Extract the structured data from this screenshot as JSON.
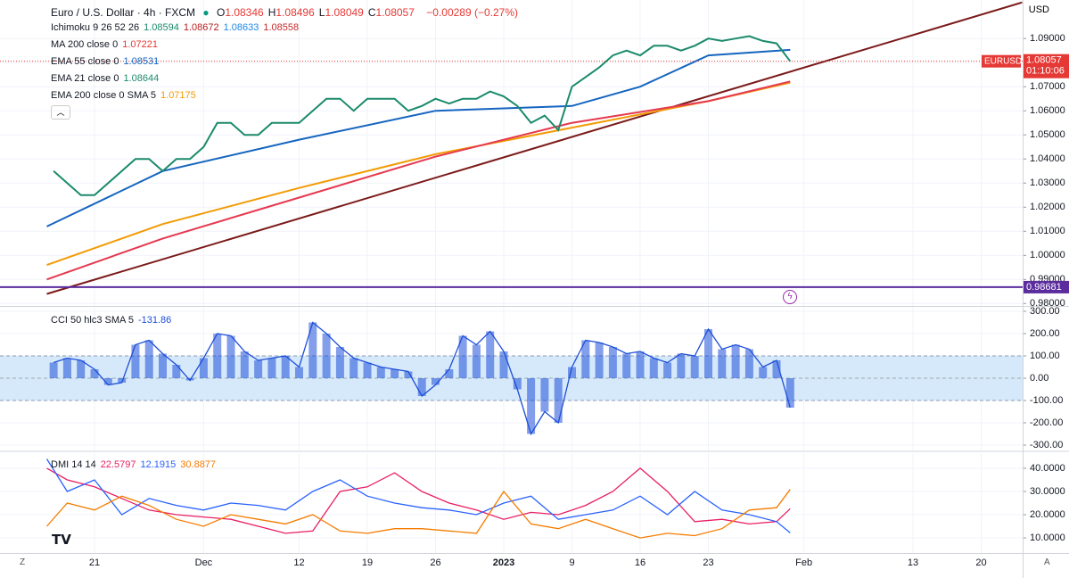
{
  "chart_data": [
    {
      "type": "line",
      "title": "Euro / U.S. Dollar · 4h · FXCM",
      "currency": "USD",
      "ohlc": [
        {
          "label": "O",
          "value": 1.08346
        },
        {
          "label": "H",
          "value": 1.08496
        },
        {
          "label": "L",
          "value": 1.08049
        },
        {
          "label": "C",
          "value": 1.08057
        }
      ],
      "change": "−0.00289 (−0.27%)",
      "indicators": [
        {
          "name": "Ichimoku 9 26 52 26",
          "values": [
            1.08594,
            1.08672,
            1.08633,
            1.08558
          ],
          "colors": [
            "#1b8a6b",
            "#b71c1c",
            "#1e88e5",
            "#c62828"
          ]
        },
        {
          "name": "MA 200 close 0",
          "values": [
            1.07221
          ],
          "colors": [
            "#e53935"
          ]
        },
        {
          "name": "EMA 55 close 0",
          "values": [
            1.08531
          ],
          "colors": [
            "#1565c0"
          ]
        },
        {
          "name": "EMA 21 close 0",
          "values": [
            1.08644
          ],
          "colors": [
            "#1b8a6b"
          ]
        },
        {
          "name": "EMA 200 close 0 SMA 5",
          "values": [
            1.07175
          ],
          "colors": [
            "#f29b05"
          ]
        }
      ],
      "xlim": [
        -6.93,
        68.04
      ],
      "ylim": [
        0.979,
        1.106
      ],
      "yticks": [
        {
          "value": 0.98,
          "label": "0.98000"
        },
        {
          "value": 0.99,
          "label": "0.99000"
        },
        {
          "value": 1.0,
          "label": "1.00000"
        },
        {
          "value": 1.01,
          "label": "1.01000"
        },
        {
          "value": 1.02,
          "label": "1.02000"
        },
        {
          "value": 1.03,
          "label": "1.03000"
        },
        {
          "value": 1.04,
          "label": "1.04000"
        },
        {
          "value": 1.05,
          "label": "1.05000"
        },
        {
          "value": 1.06,
          "label": "1.06000"
        },
        {
          "value": 1.07,
          "label": "1.07000"
        },
        {
          "value": 1.08,
          "label": "1.08000"
        },
        {
          "value": 1.09,
          "label": "1.09000"
        }
      ],
      "series": [
        {
          "color": "#7b1a1a",
          "x": [
            -3.5,
            68
          ],
          "values": [
            0.984,
            1.105
          ]
        },
        {
          "color": "#f29b05",
          "x": [
            -3.5,
            5,
            15,
            25,
            35,
            45,
            51
          ],
          "values": [
            0.996,
            1.013,
            1.028,
            1.042,
            1.053,
            1.064,
            1.0717
          ]
        },
        {
          "color": "#e53950",
          "x": [
            -3.5,
            5,
            15,
            25,
            35,
            45,
            51
          ],
          "values": [
            0.99,
            1.007,
            1.024,
            1.041,
            1.055,
            1.064,
            1.0722
          ]
        },
        {
          "color": "#1565c0",
          "x": [
            -3.5,
            5,
            15,
            25,
            35,
            40,
            45,
            51
          ],
          "values": [
            1.012,
            1.035,
            1.048,
            1.06,
            1.062,
            1.07,
            1.083,
            1.0853
          ]
        },
        {
          "color": "#1b8a6b",
          "x": [
            -3,
            -2,
            -1,
            0,
            1,
            2,
            3,
            4,
            5,
            6,
            7,
            8,
            9,
            10,
            11,
            12,
            13,
            14,
            15,
            16,
            17,
            18,
            19,
            20,
            21,
            22,
            23,
            24,
            25,
            26,
            27,
            28,
            29,
            30,
            31,
            32,
            33,
            34,
            35,
            36,
            37,
            38,
            39,
            40,
            41,
            42,
            43,
            44,
            45,
            46,
            47,
            48,
            49,
            50,
            51
          ],
          "values": [
            1.035,
            1.03,
            1.025,
            1.025,
            1.03,
            1.035,
            1.04,
            1.04,
            1.035,
            1.04,
            1.04,
            1.045,
            1.055,
            1.055,
            1.05,
            1.05,
            1.055,
            1.055,
            1.055,
            1.06,
            1.065,
            1.065,
            1.06,
            1.065,
            1.065,
            1.065,
            1.06,
            1.062,
            1.065,
            1.063,
            1.065,
            1.065,
            1.068,
            1.066,
            1.062,
            1.055,
            1.058,
            1.052,
            1.07,
            1.074,
            1.078,
            1.083,
            1.085,
            1.083,
            1.087,
            1.087,
            1.085,
            1.087,
            1.09,
            1.089,
            1.09,
            1.091,
            1.089,
            1.088,
            1.08057
          ]
        }
      ],
      "hline": {
        "value": 0.98681,
        "color": "#5b2c9e"
      },
      "last": {
        "value": 1.08057,
        "symbol": "EURUSD",
        "countdown": "01:10:06",
        "color": "#e53935"
      }
    },
    {
      "type": "line",
      "title": "CCI 50 hlc3 SMA 5",
      "last_value": -131.86,
      "xlim": [
        -6.93,
        68.04
      ],
      "ylim": [
        -324,
        324
      ],
      "yticks": [
        {
          "value": -300,
          "label": "-300.00"
        },
        {
          "value": -200,
          "label": "-200.00"
        },
        {
          "value": -100,
          "label": "-100.00"
        },
        {
          "value": 0,
          "label": "0.00"
        },
        {
          "value": 100,
          "label": "100.00"
        },
        {
          "value": 200,
          "label": "200.00"
        },
        {
          "value": 300,
          "label": "300.00"
        }
      ],
      "band": [
        -100,
        100
      ],
      "histogram": true,
      "series": [
        {
          "color": "#1e4fd8",
          "x": [
            -3,
            -2,
            -1,
            0,
            1,
            2,
            3,
            4,
            5,
            6,
            7,
            8,
            9,
            10,
            11,
            12,
            13,
            14,
            15,
            16,
            17,
            18,
            19,
            20,
            21,
            22,
            23,
            24,
            25,
            26,
            27,
            28,
            29,
            30,
            31,
            32,
            33,
            34,
            35,
            36,
            37,
            38,
            39,
            40,
            41,
            42,
            43,
            44,
            45,
            46,
            47,
            48,
            49,
            50,
            51
          ],
          "values": [
            70,
            90,
            80,
            40,
            -30,
            -20,
            150,
            170,
            110,
            60,
            -10,
            90,
            200,
            190,
            120,
            80,
            90,
            100,
            50,
            250,
            200,
            140,
            90,
            70,
            50,
            40,
            30,
            -80,
            -30,
            40,
            190,
            150,
            210,
            120,
            -50,
            -250,
            -150,
            -200,
            50,
            170,
            160,
            140,
            110,
            120,
            90,
            70,
            110,
            100,
            220,
            130,
            150,
            130,
            50,
            80,
            -131.86
          ]
        }
      ]
    },
    {
      "type": "line",
      "title": "DMI 14 14",
      "xlim": [
        -6.93,
        68.04
      ],
      "ylim": [
        3.5,
        46.5
      ],
      "yticks": [
        {
          "value": 10,
          "label": "10.0000"
        },
        {
          "value": 20,
          "label": "20.0000"
        },
        {
          "value": 30,
          "label": "30.0000"
        },
        {
          "value": 40,
          "label": "40.0000"
        }
      ],
      "xticks": [
        {
          "value": 0,
          "label": "21"
        },
        {
          "value": 8,
          "label": "Dec"
        },
        {
          "value": 15,
          "label": "12"
        },
        {
          "value": 20,
          "label": "19"
        },
        {
          "value": 25,
          "label": "26"
        },
        {
          "value": 30,
          "label": "2023"
        },
        {
          "value": 35,
          "label": "9"
        },
        {
          "value": 40,
          "label": "16"
        },
        {
          "value": 45,
          "label": "23"
        },
        {
          "value": 52,
          "label": "Feb"
        },
        {
          "value": 60,
          "label": "13"
        },
        {
          "value": 65,
          "label": "20"
        }
      ],
      "series": [
        {
          "color": "#e91e63",
          "x": [
            -3.5,
            -2,
            0,
            2,
            4,
            6,
            8,
            10,
            12,
            14,
            16,
            18,
            20,
            22,
            24,
            26,
            28,
            30,
            32,
            34,
            36,
            38,
            40,
            42,
            44,
            46,
            48,
            50,
            51
          ],
          "values": [
            40,
            35,
            32,
            27,
            22,
            20,
            19,
            18,
            15,
            12,
            13,
            30,
            32,
            38,
            30,
            25,
            22,
            18,
            21,
            20,
            24,
            30,
            40,
            30,
            17,
            18,
            16,
            17,
            22.5797
          ]
        },
        {
          "color": "#2962ff",
          "x": [
            -3.5,
            -2,
            0,
            2,
            4,
            6,
            8,
            10,
            12,
            14,
            16,
            18,
            20,
            22,
            24,
            26,
            28,
            30,
            32,
            34,
            36,
            38,
            40,
            42,
            44,
            46,
            48,
            50,
            51
          ],
          "values": [
            44,
            30,
            35,
            20,
            27,
            24,
            22,
            25,
            24,
            22,
            30,
            35,
            28,
            25,
            23,
            22,
            20,
            25,
            28,
            18,
            20,
            22,
            28,
            20,
            30,
            22,
            20,
            17,
            12.1915
          ]
        },
        {
          "color": "#f57c00",
          "x": [
            -3.5,
            -2,
            0,
            2,
            4,
            6,
            8,
            10,
            12,
            14,
            16,
            18,
            20,
            22,
            24,
            26,
            28,
            30,
            32,
            34,
            36,
            38,
            40,
            42,
            44,
            46,
            48,
            50,
            51
          ],
          "values": [
            15,
            25,
            22,
            28,
            24,
            18,
            15,
            20,
            18,
            16,
            20,
            13,
            12,
            14,
            14,
            13,
            12,
            30,
            16,
            14,
            18,
            14,
            10,
            12,
            11,
            14,
            22,
            23,
            30.8877
          ]
        }
      ]
    }
  ]
}
